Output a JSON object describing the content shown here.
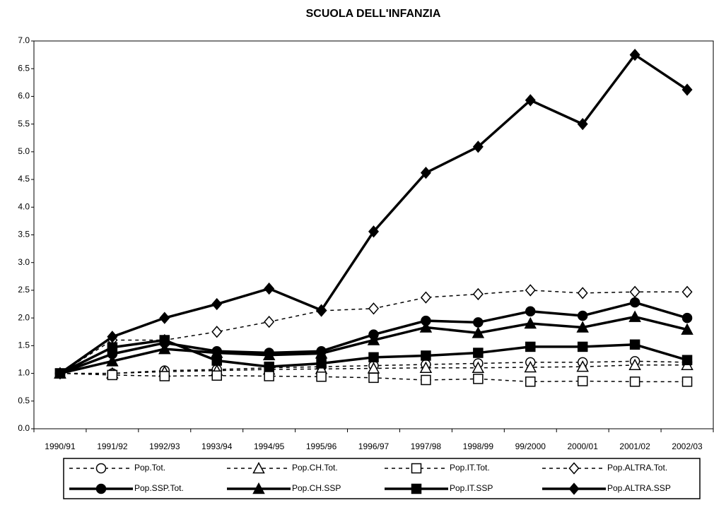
{
  "chart_data": {
    "type": "line",
    "title": "SCUOLA DELL'INFANZIA",
    "categories": [
      "1990/91",
      "1991/92",
      "1992/93",
      "1993/94",
      "1994/95",
      "1995/96",
      "1996/97",
      "1997/98",
      "1998/99",
      "99/2000",
      "2000/01",
      "2001/02",
      "2002/03"
    ],
    "ylim": [
      0,
      7
    ],
    "yticks": [
      {
        "value": 0,
        "label": "0.0"
      },
      {
        "value": 0.5,
        "label": "0.5"
      },
      {
        "value": 1,
        "label": "1.0"
      },
      {
        "value": 1.5,
        "label": "1.5"
      },
      {
        "value": 2,
        "label": "2.0"
      },
      {
        "value": 2.5,
        "label": "2.5"
      },
      {
        "value": 3,
        "label": "3.0"
      },
      {
        "value": 3.5,
        "label": "3.5"
      },
      {
        "value": 4,
        "label": "4.0"
      },
      {
        "value": 4.5,
        "label": "4.5"
      },
      {
        "value": 5,
        "label": "5.0"
      },
      {
        "value": 5.5,
        "label": "5.5"
      },
      {
        "value": 6,
        "label": "6.0"
      },
      {
        "value": 6.5,
        "label": "6.5"
      },
      {
        "value": 7,
        "label": "7.0"
      }
    ],
    "grid": false,
    "legend": "bottom",
    "series": [
      {
        "name": "Pop.Tot.",
        "color": "#000000",
        "marker": "circle",
        "filled": false,
        "dashed": true,
        "values": [
          1.0,
          1.0,
          1.05,
          1.07,
          1.1,
          1.12,
          1.14,
          1.16,
          1.18,
          1.2,
          1.2,
          1.22,
          1.2
        ]
      },
      {
        "name": "Pop.CH.Tot.",
        "color": "#000000",
        "marker": "triangle",
        "filled": false,
        "dashed": true,
        "values": [
          1.0,
          1.0,
          1.03,
          1.05,
          1.07,
          1.08,
          1.09,
          1.1,
          1.1,
          1.11,
          1.12,
          1.15,
          1.15
        ]
      },
      {
        "name": "Pop.IT.Tot.",
        "color": "#000000",
        "marker": "square",
        "filled": false,
        "dashed": true,
        "values": [
          1.0,
          0.97,
          0.95,
          0.96,
          0.95,
          0.94,
          0.92,
          0.88,
          0.9,
          0.85,
          0.86,
          0.85,
          0.85
        ]
      },
      {
        "name": "Pop.ALTRA.Tot.",
        "color": "#000000",
        "marker": "diamond",
        "filled": false,
        "dashed": true,
        "values": [
          1.0,
          1.6,
          1.6,
          1.75,
          1.93,
          2.13,
          2.17,
          2.37,
          2.43,
          2.5,
          2.45,
          2.47,
          2.47
        ]
      },
      {
        "name": "Pop.SSP.Tot.",
        "color": "#000000",
        "marker": "circle",
        "filled": true,
        "dashed": false,
        "values": [
          1.0,
          1.35,
          1.55,
          1.4,
          1.37,
          1.4,
          1.7,
          1.95,
          1.92,
          2.12,
          2.04,
          2.28,
          2.0
        ]
      },
      {
        "name": "Pop.CH.SSP",
        "color": "#000000",
        "marker": "triangle",
        "filled": true,
        "dashed": false,
        "values": [
          1.0,
          1.22,
          1.44,
          1.37,
          1.33,
          1.36,
          1.6,
          1.83,
          1.73,
          1.9,
          1.83,
          2.02,
          1.79
        ]
      },
      {
        "name": "Pop.IT.SSP",
        "color": "#000000",
        "marker": "square",
        "filled": true,
        "dashed": false,
        "values": [
          1.0,
          1.47,
          1.6,
          1.23,
          1.12,
          1.18,
          1.29,
          1.32,
          1.37,
          1.48,
          1.48,
          1.52,
          1.24
        ]
      },
      {
        "name": "Pop.ALTRA.SSP",
        "color": "#000000",
        "marker": "diamond",
        "filled": true,
        "dashed": false,
        "values": [
          1.0,
          1.66,
          2.0,
          2.25,
          2.53,
          2.14,
          3.56,
          4.62,
          5.09,
          5.93,
          5.5,
          6.75,
          6.12
        ]
      }
    ]
  }
}
